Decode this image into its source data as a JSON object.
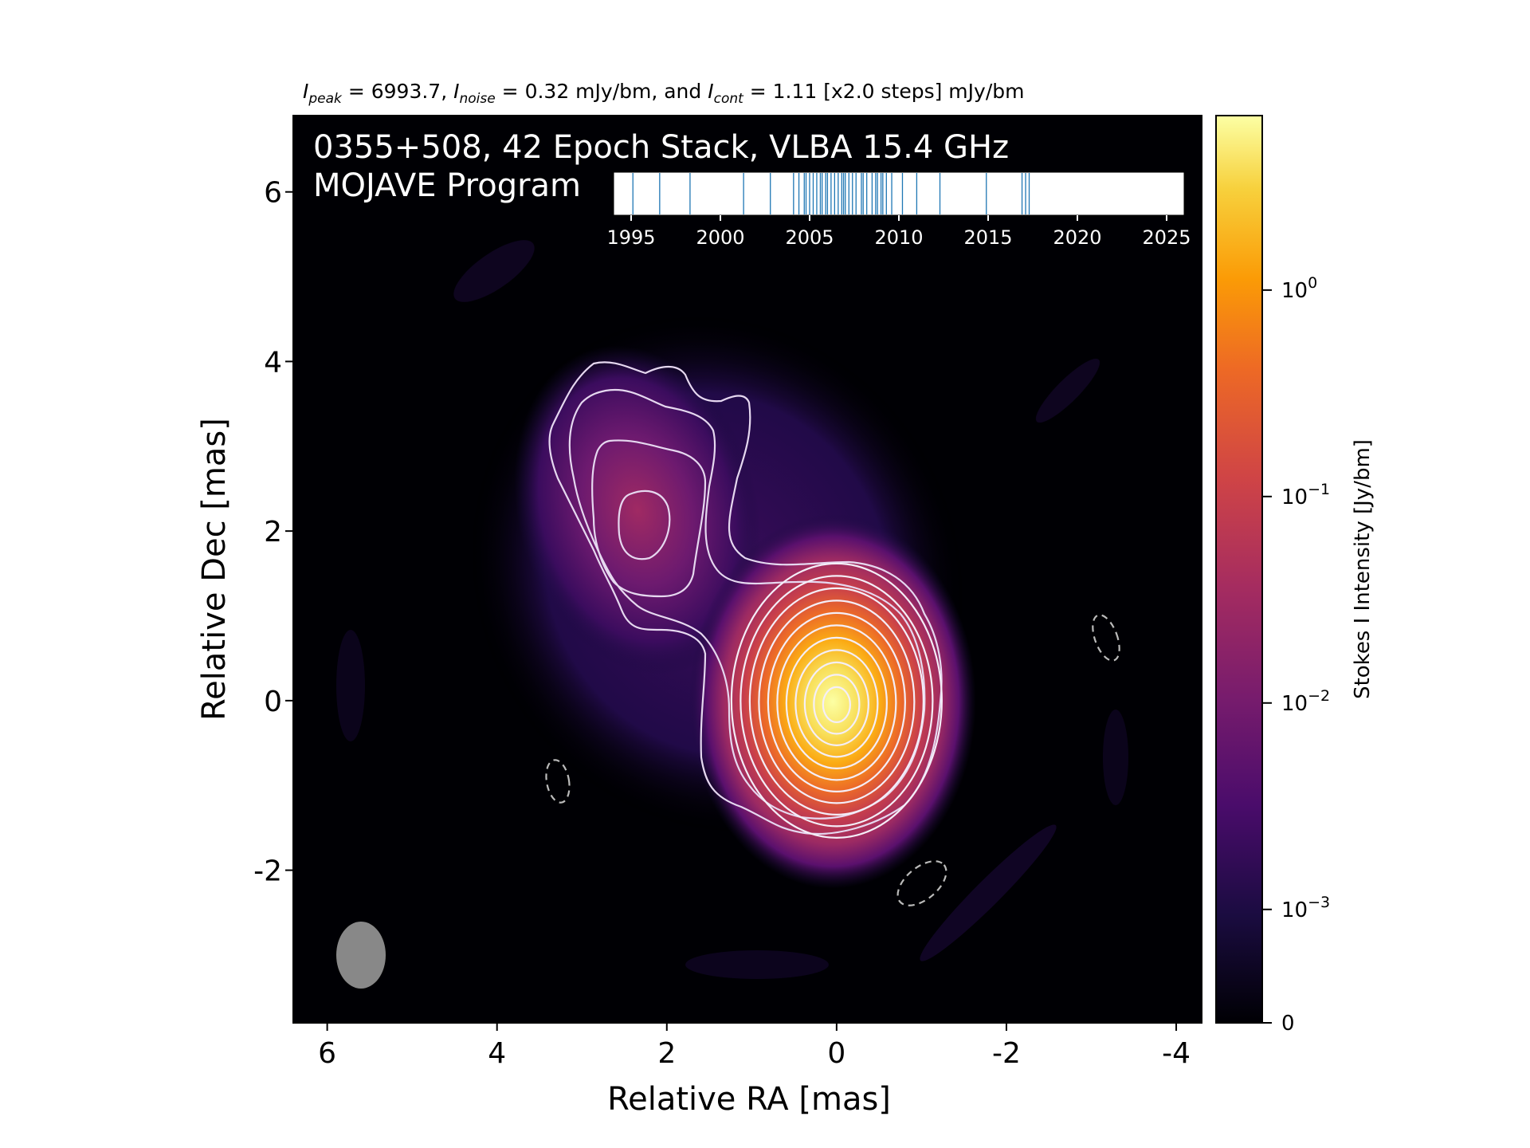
{
  "chart_data": {
    "type": "heatmap",
    "header": {
      "peak_symbol": "I",
      "peak_sub": "peak",
      "peak_value": "= 6993.7,",
      "noise_symbol": "I",
      "noise_sub": "noise",
      "noise_value": "= 0.32 mJy/bm, and",
      "cont_symbol": "I",
      "cont_sub": "cont",
      "cont_value": "= 1.11 [x2.0 steps] mJy/bm"
    },
    "title_line1": "0355+508, 42 Epoch Stack, VLBA 15.4 GHz",
    "title_line2": "MOJAVE Program",
    "xlabel": "Relative RA [mas]",
    "ylabel": "Relative Dec [mas]",
    "xlim": [
      6.4,
      -4.3
    ],
    "ylim": [
      -3.8,
      6.9
    ],
    "x_ticks": [
      6,
      4,
      2,
      0,
      -2,
      -4
    ],
    "x_tick_labels": [
      "6",
      "4",
      "2",
      "0",
      "-2",
      "-4"
    ],
    "y_ticks": [
      6,
      4,
      2,
      0,
      -2
    ],
    "y_tick_labels": [
      "6",
      "4",
      "2",
      "0",
      "-2"
    ],
    "colorbar": {
      "label": "Stokes I Intensity [Jy/bm]",
      "scale": "log",
      "colormap": "inferno",
      "tick_labels": [
        "10^0",
        "10^-1",
        "10^-2",
        "10^-3",
        "0"
      ],
      "tick_values": [
        1,
        0.1,
        0.01,
        0.001,
        0
      ]
    },
    "epoch_timeline": {
      "tick_labels": [
        "1995",
        "2000",
        "2005",
        "2010",
        "2015",
        "2020",
        "2025"
      ],
      "xlim": [
        1994.0,
        2026.0
      ],
      "epochs": [
        1995.1,
        1996.6,
        1998.3,
        2001.3,
        2002.8,
        2004.1,
        2004.4,
        2004.7,
        2005.0,
        2005.2,
        2005.4,
        2005.6,
        2005.9,
        2006.2,
        2006.4,
        2006.6,
        2006.9,
        2007.2,
        2007.4,
        2007.6,
        2007.9,
        2008.2,
        2008.5,
        2008.7,
        2009.0,
        2009.3,
        2009.6,
        2010.2,
        2011.0,
        2012.3,
        2014.9,
        2016.9,
        2017.1,
        2017.3,
        2004.8,
        2005.7,
        2006.0,
        2006.8,
        2007.0,
        2008.0,
        2008.8,
        2009.1
      ]
    },
    "components": [
      {
        "name": "core",
        "ra": 0.0,
        "dec": 0.0,
        "peak_jy": 6.99
      },
      {
        "name": "jet",
        "ra": 2.3,
        "dec": 2.1,
        "peak_jy": 0.014
      }
    ],
    "beam": {
      "ra": 5.6,
      "dec": -3.0
    },
    "colors": {
      "background": "#000004",
      "contour": "#ffffff",
      "negative_contour": "#bbbbbb",
      "beam": "#888888",
      "epoch_line": "#1f77b4"
    }
  }
}
